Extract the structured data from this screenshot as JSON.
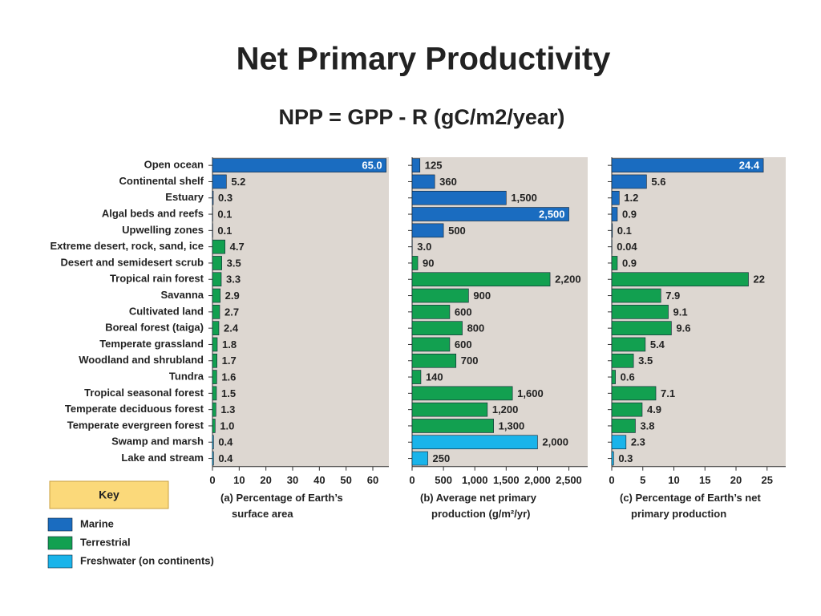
{
  "title": "Net Primary Productivity",
  "subtitle": "NPP = GPP - R (gC/m2/year)",
  "chart_data": {
    "type": "bar",
    "categories": [
      "Open ocean",
      "Continental shelf",
      "Estuary",
      "Algal beds and reefs",
      "Upwelling zones",
      "Extreme desert, rock, sand, ice",
      "Desert and semidesert scrub",
      "Tropical rain forest",
      "Savanna",
      "Cultivated land",
      "Boreal forest (taiga)",
      "Temperate grassland",
      "Woodland and shrubland",
      "Tundra",
      "Tropical seasonal forest",
      "Temperate deciduous forest",
      "Temperate evergreen forest",
      "Swamp and marsh",
      "Lake and stream"
    ],
    "colors": [
      "#1a6cc0",
      "#1a6cc0",
      "#1a6cc0",
      "#1a6cc0",
      "#1a6cc0",
      "#12a050",
      "#12a050",
      "#12a050",
      "#12a050",
      "#12a050",
      "#12a050",
      "#12a050",
      "#12a050",
      "#12a050",
      "#12a050",
      "#12a050",
      "#12a050",
      "#1ab4ea",
      "#1ab4ea"
    ],
    "panels": [
      {
        "xlabel": [
          "(a) Percentage of Earth’s",
          "surface area"
        ],
        "values": [
          65.0,
          5.2,
          0.3,
          0.1,
          0.1,
          4.7,
          3.5,
          3.3,
          2.9,
          2.7,
          2.4,
          1.8,
          1.7,
          1.6,
          1.5,
          1.3,
          1.0,
          0.4,
          0.4
        ],
        "value_labels": [
          "65.0",
          "5.2",
          "0.3",
          "0.1",
          "0.1",
          "4.7",
          "3.5",
          "3.3",
          "2.9",
          "2.7",
          "2.4",
          "1.8",
          "1.7",
          "1.6",
          "1.5",
          "1.3",
          "1.0",
          "0.4",
          "0.4"
        ],
        "xlim": [
          0,
          66
        ],
        "xticks": [
          0,
          10,
          20,
          30,
          40,
          50,
          60
        ]
      },
      {
        "xlabel": [
          "(b) Average net primary",
          "production (g/m²/yr)"
        ],
        "values": [
          125,
          360,
          1500,
          2500,
          500,
          3,
          90,
          2200,
          900,
          600,
          800,
          600,
          700,
          140,
          1600,
          1200,
          1300,
          2000,
          250
        ],
        "value_labels": [
          "125",
          "360",
          "1,500",
          "2,500",
          "500",
          "3.0",
          "90",
          "2,200",
          "900",
          "600",
          "800",
          "600",
          "700",
          "140",
          "1,600",
          "1,200",
          "1,300",
          "2,000",
          "250"
        ],
        "xlim": [
          0,
          2800
        ],
        "xticks": [
          0,
          500,
          {
            "value": 1000,
            "label": "1,000"
          },
          {
            "value": 1500,
            "label": "1,500"
          },
          {
            "value": 2000,
            "label": "2,000"
          },
          {
            "value": 2500,
            "label": "2,500"
          }
        ]
      },
      {
        "xlabel": [
          "(c) Percentage of Earth’s net",
          "primary production"
        ],
        "values": [
          24.4,
          5.6,
          1.2,
          0.9,
          0.1,
          0.04,
          0.9,
          22,
          7.9,
          9.1,
          9.6,
          5.4,
          3.5,
          0.6,
          7.1,
          4.9,
          3.8,
          2.3,
          0.3
        ],
        "value_labels": [
          "24.4",
          "5.6",
          "1.2",
          "0.9",
          "0.1",
          "0.04",
          "0.9",
          "22",
          "7.9",
          "9.1",
          "9.6",
          "5.4",
          "3.5",
          "0.6",
          "7.1",
          "4.9",
          "3.8",
          "2.3",
          "0.3"
        ],
        "xlim": [
          0,
          28
        ],
        "xticks": [
          0,
          5,
          10,
          15,
          20,
          25
        ]
      }
    ],
    "legend": {
      "title": "Key",
      "entries": [
        {
          "name": "Marine",
          "color": "#1a6cc0"
        },
        {
          "name": "Terrestrial",
          "color": "#12a050"
        },
        {
          "name": "Freshwater (on continents)",
          "color": "#1ab4ea"
        }
      ]
    }
  }
}
